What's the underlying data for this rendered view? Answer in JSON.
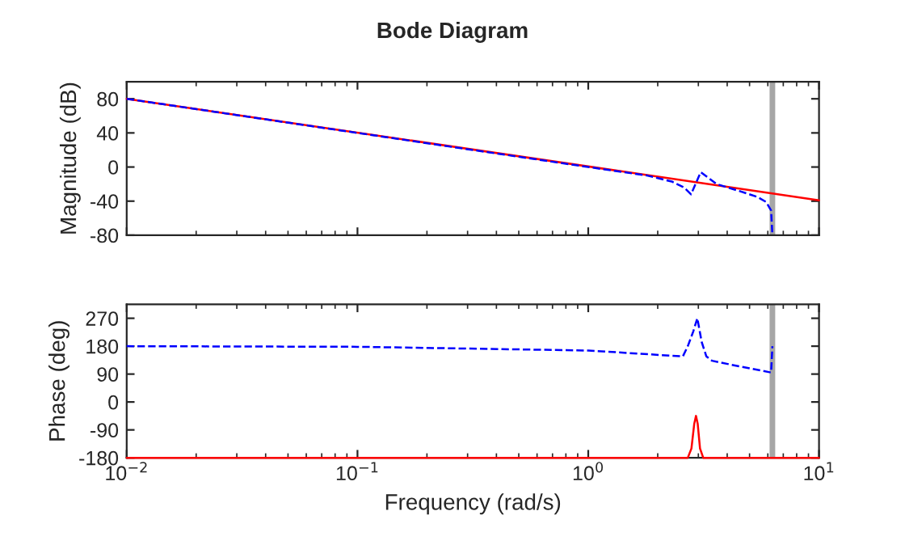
{
  "chart_data": [
    {
      "type": "line",
      "title": "Bode Diagram",
      "ylabel": "Magnitude (dB)",
      "log": "x",
      "xlim": [
        0.01,
        10
      ],
      "xticks": [
        {
          "value": 0.01,
          "label": null
        },
        {
          "value": 0.1,
          "label": null
        },
        {
          "value": 1,
          "label": null
        },
        {
          "value": 10,
          "label": null
        }
      ],
      "ylim": [
        -80,
        100
      ],
      "yticks": [
        80,
        40,
        0,
        -40,
        -80
      ],
      "tick_labels": "y",
      "grid": false,
      "marker": "none",
      "series": [
        {
          "color": "#ff0000",
          "line_style": "solid",
          "x": [
            0.01,
            10
          ],
          "values": [
            80,
            -39
          ]
        },
        {
          "color": "#0000ff",
          "line_style": "dashed",
          "x": [
            0.01,
            0.1,
            1,
            1.8,
            2.3,
            2.6,
            2.79,
            3.07,
            3.6,
            4.5,
            5.4,
            5.9,
            6.2,
            6.28
          ],
          "values": [
            80,
            40,
            0,
            -10,
            -17,
            -24,
            -32,
            -6,
            -20,
            -28,
            -35,
            -41,
            -51,
            -80
          ]
        }
      ],
      "ref_lines": [
        {
          "axis": "x",
          "value": 6.28,
          "color": "#a6a6a6"
        }
      ]
    },
    {
      "type": "line",
      "xlabel": "Frequency (rad/s)",
      "ylabel": "Phase (deg)",
      "log": "x",
      "xlim": [
        0.01,
        10
      ],
      "xticks": [
        {
          "value": 0.01,
          "label": "10$^{−2}$"
        },
        {
          "value": 0.1,
          "label": "10$^{−1}$"
        },
        {
          "value": 1,
          "label": "10$^{0}$"
        },
        {
          "value": 10,
          "label": "10$^{1}$"
        }
      ],
      "ylim": [
        -180,
        315
      ],
      "yticks": [
        270,
        180,
        90,
        0,
        -90,
        -180
      ],
      "grid": false,
      "marker": "none",
      "series": [
        {
          "color": "#ff0000",
          "line_style": "solid",
          "x": [
            0.01,
            2.7,
            2.8,
            2.88,
            2.93,
            2.98,
            3.05,
            3.15,
            10
          ],
          "values": [
            -180,
            -180,
            -150,
            -70,
            -45,
            -70,
            -150,
            -180,
            -180
          ]
        },
        {
          "color": "#0000ff",
          "line_style": "dashed",
          "x": [
            0.01,
            0.1,
            1,
            2.57,
            2.7,
            2.85,
            2.97,
            3.1,
            3.25,
            3.44,
            4.5,
            6.2,
            6.28
          ],
          "values": [
            180,
            178,
            166,
            147,
            180,
            227,
            270,
            194,
            147,
            133,
            115,
            95,
            180
          ]
        }
      ],
      "ref_lines": [
        {
          "axis": "x",
          "value": 6.28,
          "color": "#a6a6a6"
        }
      ]
    }
  ]
}
